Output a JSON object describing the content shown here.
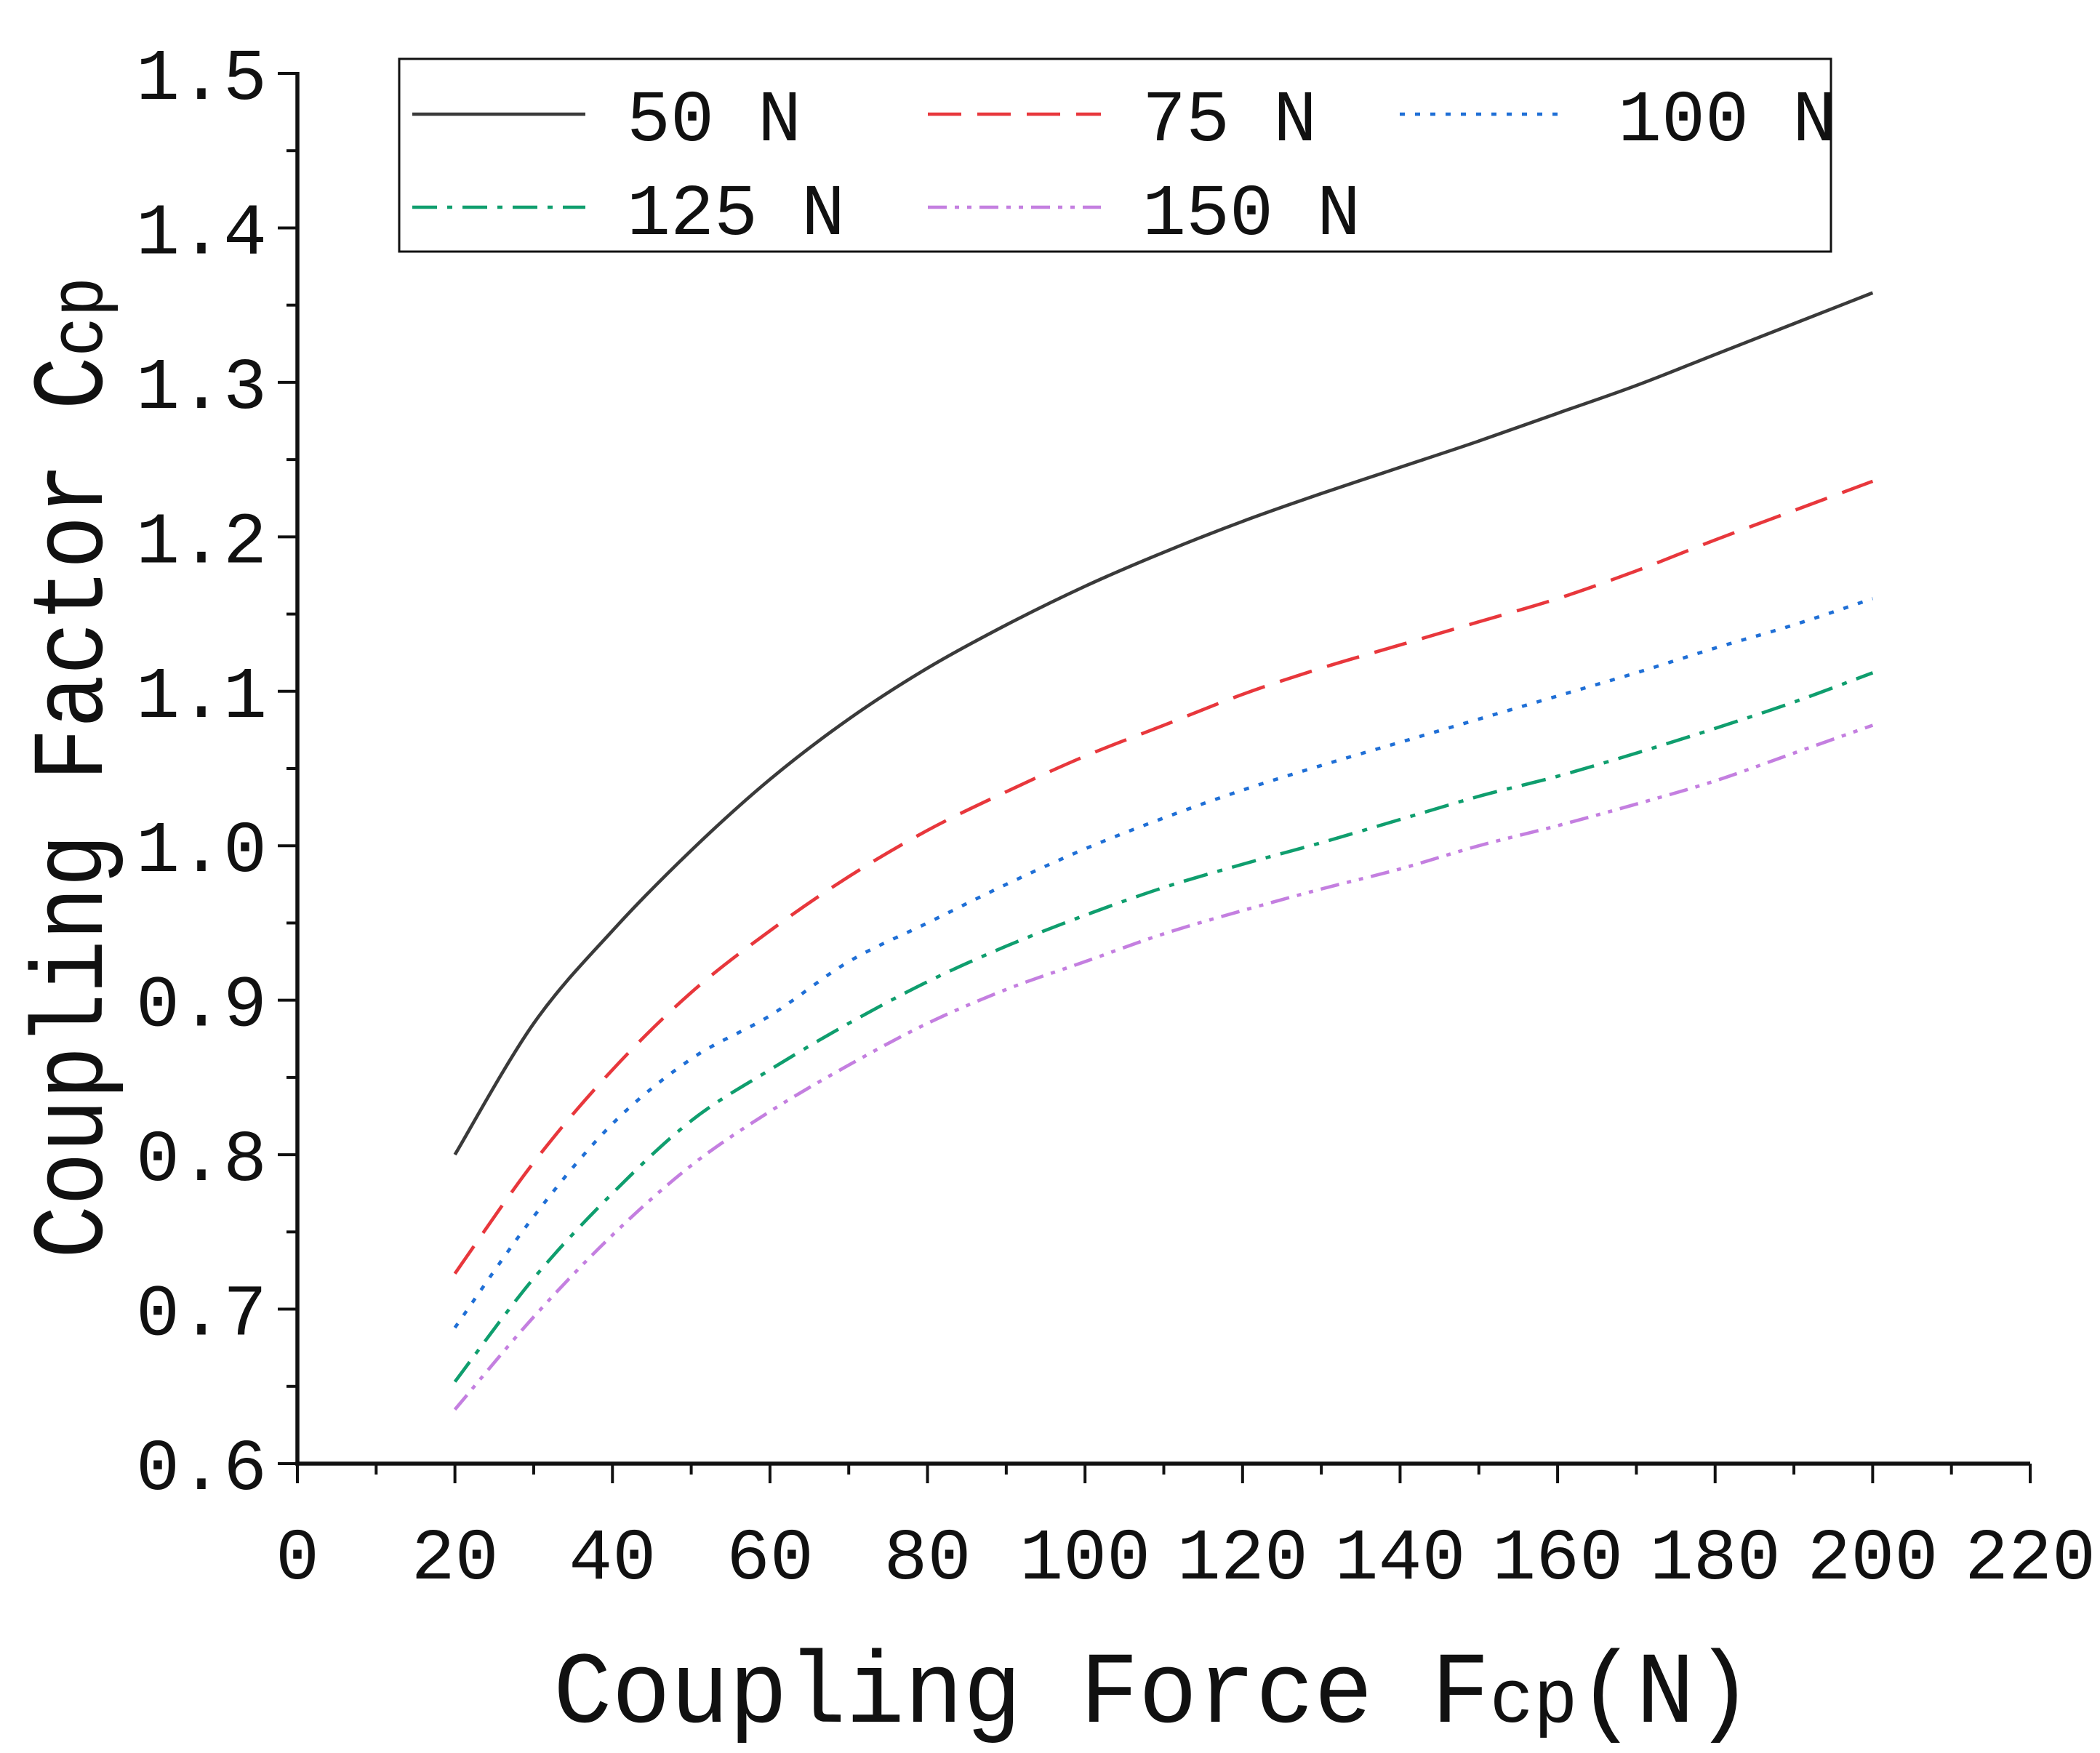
{
  "chart_data": {
    "type": "line",
    "title": "",
    "x": [
      20,
      30,
      40,
      50,
      60,
      70,
      80,
      90,
      100,
      110,
      120,
      130,
      140,
      150,
      160,
      170,
      180,
      190,
      200
    ],
    "series": [
      {
        "name": "50 N",
        "color": "#3a3a3a",
        "style": "solid",
        "values": [
          0.8,
          0.885,
          0.945,
          0.997,
          1.043,
          1.082,
          1.115,
          1.143,
          1.168,
          1.19,
          1.21,
          1.228,
          1.245,
          1.262,
          1.28,
          1.298,
          1.318,
          1.338,
          1.358
        ]
      },
      {
        "name": "75 N",
        "color": "#e8373c",
        "style": "dashed",
        "values": [
          0.723,
          0.795,
          0.855,
          0.905,
          0.945,
          0.98,
          1.01,
          1.035,
          1.058,
          1.078,
          1.098,
          1.115,
          1.13,
          1.145,
          1.16,
          1.178,
          1.198,
          1.217,
          1.236
        ]
      },
      {
        "name": "100 N",
        "color": "#1f6fd6",
        "style": "dotted",
        "values": [
          0.688,
          0.76,
          0.82,
          0.862,
          0.89,
          0.925,
          0.95,
          0.975,
          0.998,
          1.018,
          1.036,
          1.052,
          1.067,
          1.082,
          1.097,
          1.112,
          1.128,
          1.143,
          1.16
        ]
      },
      {
        "name": "125 N",
        "color": "#0f9e6e",
        "style": "dash-dot",
        "values": [
          0.653,
          0.72,
          0.775,
          0.822,
          0.855,
          0.885,
          0.912,
          0.935,
          0.955,
          0.973,
          0.988,
          1.002,
          1.017,
          1.032,
          1.045,
          1.06,
          1.076,
          1.093,
          1.112
        ]
      },
      {
        "name": "150 N",
        "color": "#c47fe0",
        "style": "dash-dot-dot",
        "values": [
          0.635,
          0.695,
          0.748,
          0.793,
          0.828,
          0.858,
          0.885,
          0.907,
          0.925,
          0.943,
          0.958,
          0.972,
          0.985,
          1.0,
          1.013,
          1.027,
          1.042,
          1.06,
          1.078
        ]
      }
    ],
    "xlabel": [
      "Coupling Force F",
      "cp",
      "(N)"
    ],
    "ylabel": [
      "Coupling Factor C",
      "cp"
    ],
    "xlim": [
      0,
      220
    ],
    "ylim": [
      0.6,
      1.5
    ],
    "xticks": [
      "0",
      "20",
      "40",
      "60",
      "80",
      "100",
      "120",
      "140",
      "160",
      "180",
      "200",
      "220"
    ],
    "yticks": [
      "0.6",
      "0.7",
      "0.8",
      "0.9",
      "1.0",
      "1.1",
      "1.2",
      "1.3",
      "1.4",
      "1.5"
    ],
    "grid": false,
    "legend": "top"
  }
}
